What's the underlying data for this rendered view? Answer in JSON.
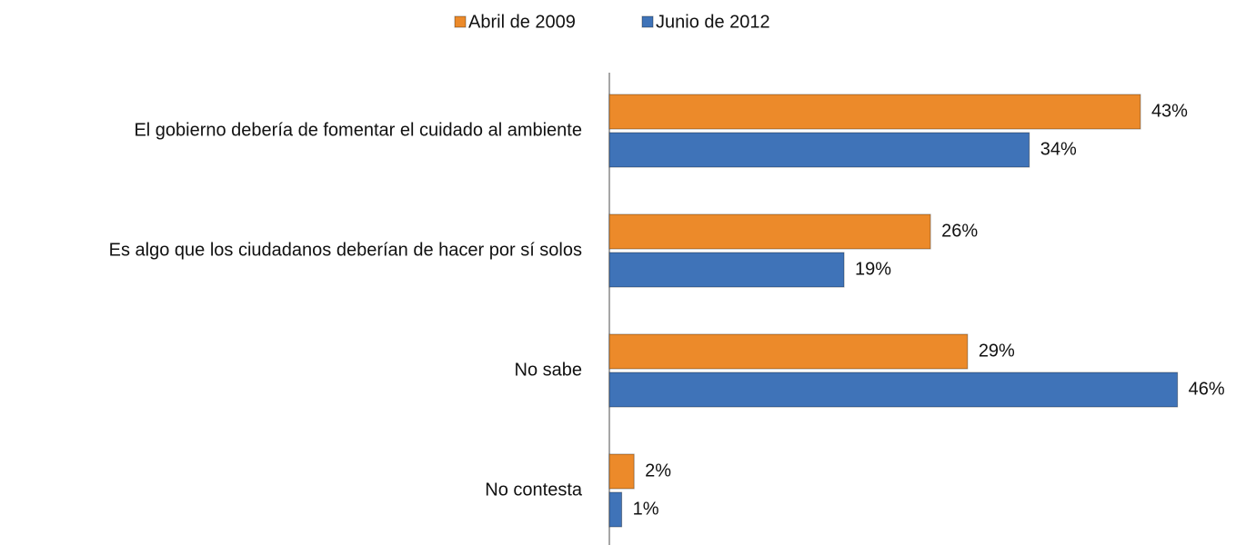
{
  "chart_data": {
    "type": "bar",
    "orientation": "horizontal",
    "categories": [
      "El gobierno debería de fomentar el cuidado al ambiente",
      "Es algo que los ciudadanos deberían de hacer por sí solos",
      "No sabe",
      "No contesta"
    ],
    "series": [
      {
        "name": "Abril de 2009",
        "color": "#ec8a2a",
        "values": [
          43,
          26,
          29,
          2
        ],
        "value_labels": [
          "43%",
          "26%",
          "29%",
          "2%"
        ]
      },
      {
        "name": "Junio de 2012",
        "color": "#3f73b8",
        "values": [
          34,
          19,
          46,
          1
        ],
        "value_labels": [
          "34%",
          "19%",
          "46%",
          "1%"
        ]
      }
    ],
    "xlim": [
      0,
      50
    ],
    "legend": "top"
  }
}
